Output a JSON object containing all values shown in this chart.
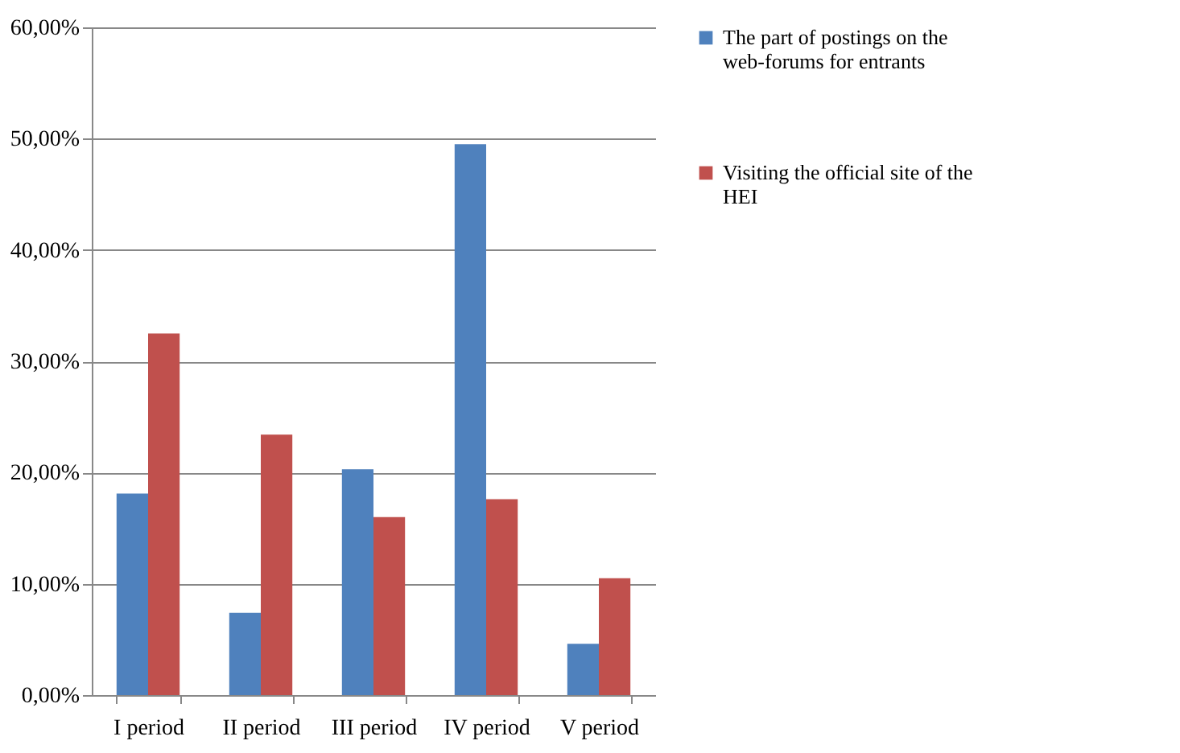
{
  "chart_data": {
    "type": "bar",
    "categories": [
      "I period",
      "II period",
      "III period",
      "IV period",
      "V period"
    ],
    "series": [
      {
        "name": "The part of postings on the web-forums for entrants",
        "color": "#4f81bd",
        "values": [
          18.1,
          7.4,
          20.3,
          49.5,
          4.6
        ]
      },
      {
        "name": "Visiting the official site of the HEI",
        "color": "#c0504d",
        "values": [
          32.5,
          23.4,
          16.0,
          17.6,
          10.5
        ]
      }
    ],
    "ylim": [
      0,
      60
    ],
    "yticks": [
      {
        "value": 0,
        "label": "0,00%"
      },
      {
        "value": 10,
        "label": "10,00%"
      },
      {
        "value": 20,
        "label": "20,00%"
      },
      {
        "value": 30,
        "label": "30,00%"
      },
      {
        "value": 40,
        "label": "40,00%"
      },
      {
        "value": 50,
        "label": "50,00%"
      },
      {
        "value": 60,
        "label": "60,00%"
      }
    ],
    "grid": "y",
    "legend": "right"
  }
}
